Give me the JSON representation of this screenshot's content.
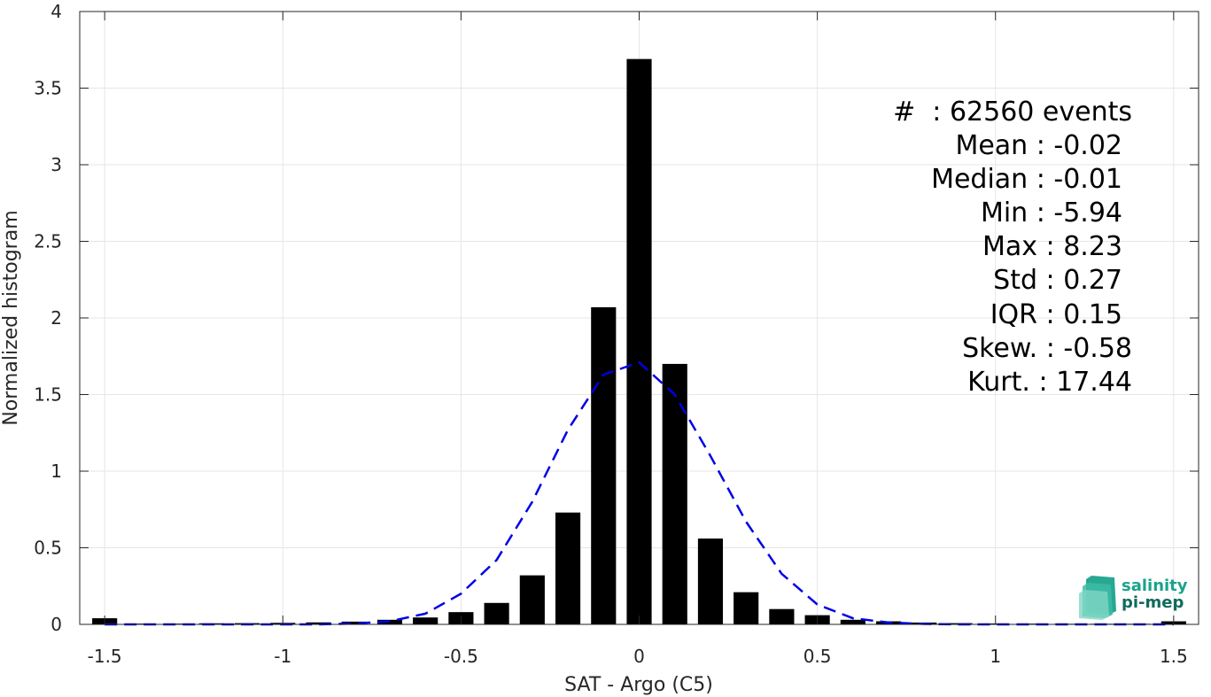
{
  "chart_data": {
    "type": "bar",
    "xlabel": "SAT - Argo (C5)",
    "ylabel": "Normalized histogram",
    "xlim": [
      -1.57,
      1.57
    ],
    "ylim": [
      0,
      4
    ],
    "grid": true,
    "x_ticks": [
      -1.5,
      -1,
      -0.5,
      0,
      0.5,
      1,
      1.5
    ],
    "x_tick_labels": [
      "-1.5",
      "-1",
      "-0.5",
      "0",
      "0.5",
      "1",
      "1.5"
    ],
    "y_ticks": [
      0,
      0.5,
      1,
      1.5,
      2,
      2.5,
      3,
      3.5,
      4
    ],
    "y_tick_labels": [
      "0",
      "0.5",
      "1",
      "1.5",
      "2",
      "2.5",
      "3",
      "3.5",
      "4"
    ],
    "bar_color": "#000000",
    "bar_width": 0.07,
    "x": [
      -1.5,
      -1.4,
      -1.3,
      -1.2,
      -1.1,
      -1.0,
      -0.9,
      -0.8,
      -0.7,
      -0.6,
      -0.5,
      -0.4,
      -0.3,
      -0.2,
      -0.1,
      0.0,
      0.1,
      0.2,
      0.3,
      0.4,
      0.5,
      0.6,
      0.7,
      0.8,
      0.9,
      1.0,
      1.1,
      1.2,
      1.3,
      1.4,
      1.5
    ],
    "values": [
      0.04,
      0.005,
      0.005,
      0.007,
      0.008,
      0.01,
      0.013,
      0.018,
      0.03,
      0.045,
      0.08,
      0.14,
      0.32,
      0.73,
      2.07,
      3.69,
      1.7,
      0.56,
      0.21,
      0.1,
      0.06,
      0.03,
      0.02,
      0.012,
      0.008,
      0.006,
      0.005,
      0.004,
      0.004,
      0.004,
      0.02
    ],
    "fit_curve": {
      "style": "dashed",
      "color": "#0000e6",
      "x": [
        -1.5,
        -1.4,
        -1.3,
        -1.2,
        -1.1,
        -1.0,
        -0.9,
        -0.8,
        -0.7,
        -0.6,
        -0.5,
        -0.4,
        -0.3,
        -0.2,
        -0.1,
        0.0,
        0.1,
        0.2,
        0.3,
        0.4,
        0.5,
        0.6,
        0.7,
        0.8,
        0.9,
        1.0,
        1.1,
        1.2,
        1.3,
        1.4,
        1.5
      ],
      "y": [
        0.0,
        0.0,
        0.0,
        0.0,
        0.0,
        0.0,
        0.0,
        0.005,
        0.02,
        0.07,
        0.2,
        0.42,
        0.8,
        1.27,
        1.63,
        1.71,
        1.5,
        1.1,
        0.67,
        0.33,
        0.13,
        0.04,
        0.012,
        0.003,
        0.0,
        0.0,
        0.0,
        0.0,
        0.0,
        0.0,
        0.0
      ]
    }
  },
  "stats": {
    "count": "#  : 62560 events",
    "mean": "Mean : -0.02",
    "median": "Median : -0.01",
    "min": "Min : -5.94",
    "max": "Max : 8.23",
    "std": "Std : 0.27",
    "iqr": "IQR : 0.15",
    "skew": "Skew. : -0.58",
    "kurt": "Kurt. : 17.44"
  },
  "logo": {
    "line1": "salinity",
    "line2": "pi-mep",
    "color": "#1aa38c"
  }
}
